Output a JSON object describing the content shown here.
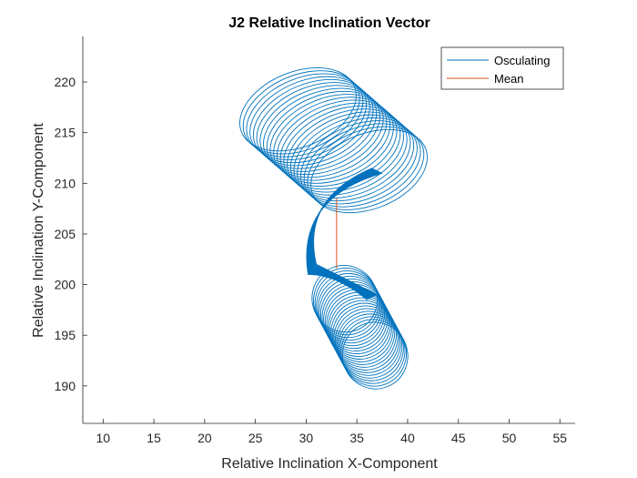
{
  "chart_data": {
    "type": "line",
    "title": "J2 Relative Inclination Vector",
    "xlabel": "Relative Inclination X-Component",
    "ylabel": "Relative Inclination Y-Component",
    "xlim": [
      8,
      56.5
    ],
    "ylim": [
      186.3,
      224.5
    ],
    "xticks": [
      10,
      15,
      20,
      25,
      30,
      35,
      40,
      45,
      50,
      55
    ],
    "yticks": [
      190,
      195,
      200,
      205,
      210,
      215,
      220
    ],
    "grid": false,
    "legend_position": "top-right",
    "series": [
      {
        "name": "Osculating",
        "color": "#0072BD",
        "description_params": {
          "upper_loops": {
            "x_center_start": 29.2,
            "x_center_end": 36.2,
            "y_center_start": 217.3,
            "y_center_end": 211.2,
            "ax": 6.0,
            "ay": 3.7,
            "count": 22
          },
          "lower_loops": {
            "x_center_start": 33.8,
            "x_center_end": 36.8,
            "y_center_start": 198.6,
            "y_center_end": 193.0,
            "ax": 3.2,
            "ay": 3.3,
            "count": 22
          },
          "x_range": [
            24.5,
            40.3
          ],
          "y_range": [
            187.0,
            224.3
          ]
        }
      },
      {
        "name": "Mean",
        "color": "#D95319",
        "x": [
          33.0,
          33.0
        ],
        "y": [
          201.6,
          208.5
        ]
      }
    ]
  }
}
